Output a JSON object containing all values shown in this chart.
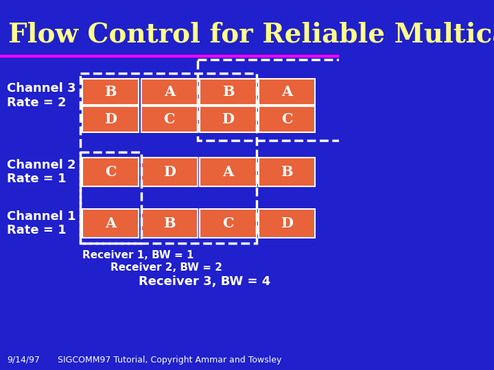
{
  "title": "Flow Control for Reliable Multicast",
  "title_color": "#FFFF88",
  "bg_color": "#2020CC",
  "separator_color": "#FF00FF",
  "box_fill_color": "#E8623A",
  "box_text_color": "#FFFFFF",
  "label_color": "#FFFFFF",
  "channel3_label": [
    "Channel 3",
    "Rate = 2"
  ],
  "channel2_label": [
    "Channel 2",
    "Rate = 1"
  ],
  "channel1_label": [
    "Channel 1",
    "Rate = 1"
  ],
  "channel3_row1": [
    "B",
    "A",
    "B",
    "A"
  ],
  "channel3_row2": [
    "D",
    "C",
    "D",
    "C"
  ],
  "channel2_row": [
    "C",
    "D",
    "A",
    "B"
  ],
  "channel1_row": [
    "A",
    "B",
    "C",
    "D"
  ],
  "receiver1_label": "Receiver 1, BW = 1",
  "receiver2_label": "Receiver 2, BW = 2",
  "receiver3_label": "Receiver 3, BW = 4",
  "footer_left": "9/14/97",
  "footer_right": "SIGCOMM97 Tutorial, Copyright Ammar and Towsley",
  "dashed_color": "#FFFFFF"
}
